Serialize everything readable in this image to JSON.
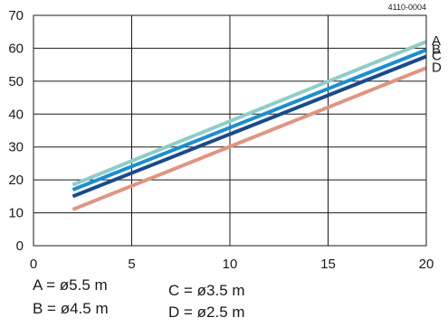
{
  "figure_code": "4110-0004",
  "chart_data": {
    "type": "line",
    "title": "",
    "xlabel": "",
    "ylabel": "",
    "xlim": [
      0,
      20
    ],
    "ylim": [
      0,
      70
    ],
    "x_ticks": [
      "0",
      "5",
      "10",
      "15",
      "20"
    ],
    "y_ticks": [
      "0",
      "10",
      "20",
      "30",
      "40",
      "50",
      "60",
      "70"
    ],
    "grid": true,
    "series": [
      {
        "name": "A",
        "color": "#8ecdc8",
        "x": [
          2,
          20
        ],
        "y": [
          18.5,
          62
        ]
      },
      {
        "name": "B",
        "color": "#1a8fd0",
        "x": [
          2,
          20
        ],
        "y": [
          17,
          59.5
        ]
      },
      {
        "name": "C",
        "color": "#1a4a8a",
        "x": [
          2,
          20
        ],
        "y": [
          15,
          57.5
        ]
      },
      {
        "name": "D",
        "color": "#e0957f",
        "x": [
          2,
          20
        ],
        "y": [
          11,
          54
        ]
      }
    ]
  },
  "legend": {
    "a": "A = ø5.5 m",
    "b": "B = ø4.5 m",
    "c": "C = ø3.5 m",
    "d": "D = ø2.5 m"
  }
}
